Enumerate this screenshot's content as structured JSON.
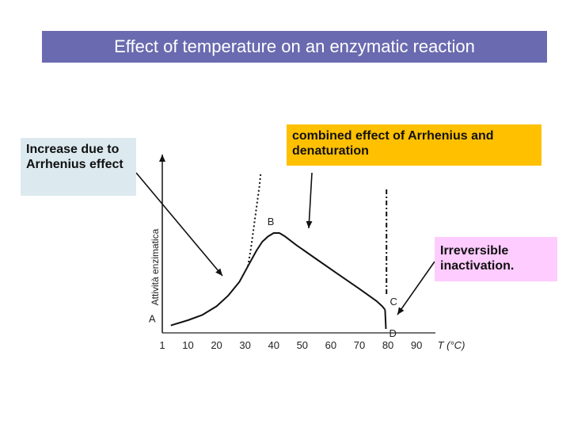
{
  "title": "Effect of temperature on an enzymatic reaction",
  "callouts": {
    "left": "Increase due to Arrhenius effect",
    "top": "combined effect of Arrhenius and denaturation",
    "right": "Irreversible inactivation."
  },
  "colors": {
    "title_bg": "#6a6ab0",
    "left_note_bg": "#dceaf0",
    "top_note_bg": "#ffc000",
    "right_note_bg": "#ffccff"
  },
  "chart_data": {
    "type": "line",
    "xlabel": "T (°C)",
    "ylabel": "Attività enzimatica",
    "x_ticks": [
      1,
      10,
      20,
      30,
      40,
      50,
      60,
      70,
      80,
      90
    ],
    "xlim": [
      1,
      98
    ],
    "ylim": [
      0,
      1
    ],
    "series": [
      {
        "style": "solid",
        "points": [
          [
            4,
            0.02
          ],
          [
            10,
            0.05
          ],
          [
            15,
            0.08
          ],
          [
            20,
            0.13
          ],
          [
            24,
            0.19
          ],
          [
            28,
            0.27
          ],
          [
            31,
            0.36
          ],
          [
            34,
            0.45
          ],
          [
            36,
            0.5
          ],
          [
            38,
            0.53
          ],
          [
            40,
            0.55
          ],
          [
            42,
            0.55
          ],
          [
            44,
            0.53
          ],
          [
            48,
            0.48
          ],
          [
            55,
            0.4
          ],
          [
            62,
            0.32
          ],
          [
            70,
            0.23
          ],
          [
            76,
            0.16
          ],
          [
            78,
            0.13
          ],
          [
            79,
            0.11
          ]
        ]
      },
      {
        "style": "dotted",
        "points": [
          [
            31,
            0.36
          ],
          [
            32,
            0.46
          ],
          [
            33,
            0.58
          ],
          [
            34,
            0.7
          ],
          [
            35,
            0.82
          ],
          [
            35.5,
            0.9
          ]
        ]
      },
      {
        "style": "dashdot",
        "points": [
          [
            79.5,
            0.8
          ],
          [
            79.5,
            0.2
          ]
        ]
      },
      {
        "style": "solid",
        "points": [
          [
            79,
            0.11
          ],
          [
            79.3,
            0.0
          ]
        ]
      }
    ],
    "point_labels": [
      {
        "label": "A",
        "x": 4,
        "y": 0.02
      },
      {
        "label": "B",
        "x": 40,
        "y": 0.55
      },
      {
        "label": "C",
        "x": 79,
        "y": 0.11
      },
      {
        "label": "D",
        "x": 79.3,
        "y": 0.0
      }
    ]
  }
}
